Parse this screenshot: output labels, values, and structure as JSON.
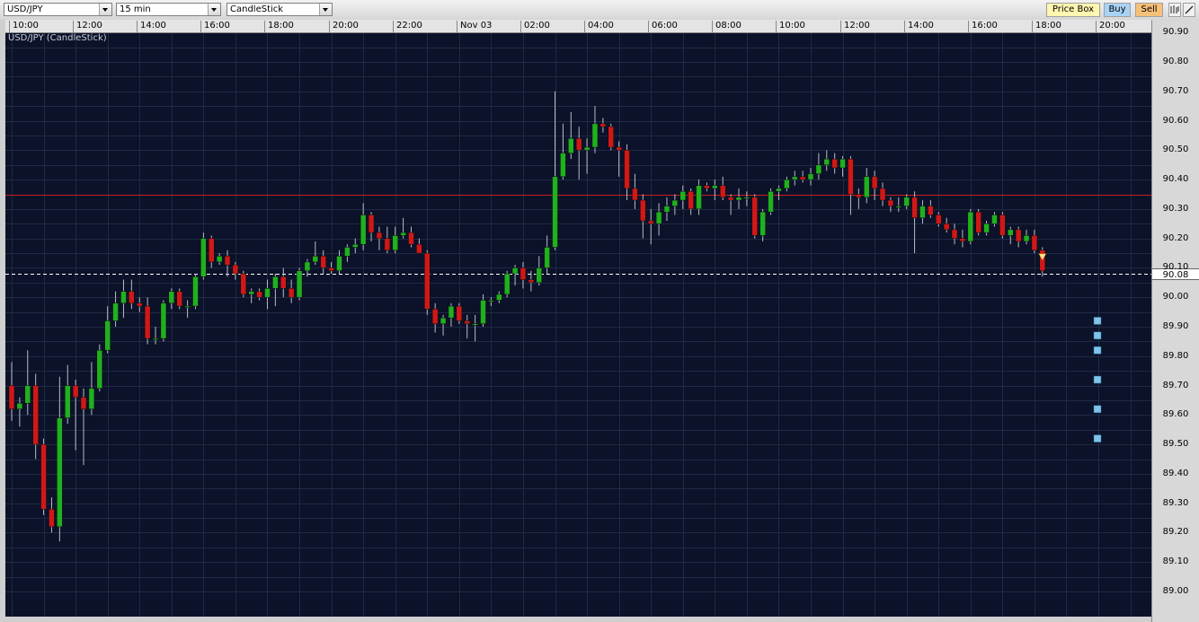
{
  "toolbar": {
    "symbol": "USD/JPY",
    "timeframe": "15 min",
    "chart_style": "CandleStick",
    "price_box_label": "Price Box",
    "buy_label": "Buy",
    "sell_label": "Sell",
    "icons": [
      "bars-icon",
      "draw-line-icon"
    ]
  },
  "chart_label": "USD/JPY (CandleStick)",
  "current_price_label": "90.08",
  "colors": {
    "background": "#0b1229",
    "grid": "#1f2a44",
    "bull": "#20b020",
    "bear": "#d01818",
    "wick": "#b8bcc8",
    "reference_line": "#c82020",
    "current_line": "#ffffff",
    "markers": "#7ec4ec"
  },
  "chart_data": {
    "type": "candlestick",
    "title": "USD/JPY (CandleStick)",
    "timeframe": "15 min",
    "ylim": [
      89.0,
      90.9
    ],
    "y_ticks": [
      "89.00",
      "89.10",
      "89.20",
      "89.30",
      "89.40",
      "89.50",
      "89.60",
      "89.70",
      "89.80",
      "89.90",
      "90.00",
      "90.08",
      "90.10",
      "90.20",
      "90.30",
      "90.40",
      "90.50",
      "90.60",
      "90.70",
      "90.80",
      "90.90"
    ],
    "x_tick_labels": [
      "10:00",
      "12:00",
      "14:00",
      "16:00",
      "18:00",
      "20:00",
      "22:00",
      "Nov 03",
      "02:00",
      "04:00",
      "06:00",
      "08:00",
      "10:00",
      "12:00",
      "14:00",
      "16:00",
      "18:00",
      "20:00"
    ],
    "current_price": 90.08,
    "reference_line": 90.35,
    "marker_levels": [
      89.52,
      89.62,
      89.72,
      89.82,
      89.87,
      89.92
    ],
    "candles": [
      {
        "o": 89.7,
        "h": 89.78,
        "l": 89.58,
        "c": 89.62
      },
      {
        "o": 89.62,
        "h": 89.66,
        "l": 89.56,
        "c": 89.64
      },
      {
        "o": 89.64,
        "h": 89.82,
        "l": 89.6,
        "c": 89.7
      },
      {
        "o": 89.7,
        "h": 89.74,
        "l": 89.45,
        "c": 89.5
      },
      {
        "o": 89.5,
        "h": 89.52,
        "l": 89.26,
        "c": 89.28
      },
      {
        "o": 89.28,
        "h": 89.32,
        "l": 89.2,
        "c": 89.22
      },
      {
        "o": 89.22,
        "h": 89.73,
        "l": 89.17,
        "c": 89.59
      },
      {
        "o": 89.59,
        "h": 89.77,
        "l": 89.57,
        "c": 89.7
      },
      {
        "o": 89.7,
        "h": 89.72,
        "l": 89.48,
        "c": 89.66
      },
      {
        "o": 89.66,
        "h": 89.69,
        "l": 89.43,
        "c": 89.62
      },
      {
        "o": 89.62,
        "h": 89.78,
        "l": 89.6,
        "c": 89.69
      },
      {
        "o": 89.69,
        "h": 89.84,
        "l": 89.68,
        "c": 89.82
      },
      {
        "o": 89.82,
        "h": 89.97,
        "l": 89.81,
        "c": 89.92
      },
      {
        "o": 89.92,
        "h": 90.02,
        "l": 89.9,
        "c": 89.98
      },
      {
        "o": 89.98,
        "h": 90.06,
        "l": 89.93,
        "c": 90.02
      },
      {
        "o": 90.02,
        "h": 90.06,
        "l": 89.96,
        "c": 89.98
      },
      {
        "o": 89.98,
        "h": 90.0,
        "l": 89.95,
        "c": 89.97
      },
      {
        "o": 89.97,
        "h": 90.0,
        "l": 89.84,
        "c": 89.86
      },
      {
        "o": 89.86,
        "h": 89.9,
        "l": 89.84,
        "c": 89.86
      },
      {
        "o": 89.86,
        "h": 89.99,
        "l": 89.85,
        "c": 89.98
      },
      {
        "o": 89.98,
        "h": 90.03,
        "l": 89.96,
        "c": 90.02
      },
      {
        "o": 90.02,
        "h": 90.03,
        "l": 89.96,
        "c": 89.97
      },
      {
        "o": 89.97,
        "h": 89.99,
        "l": 89.93,
        "c": 89.97
      },
      {
        "o": 89.97,
        "h": 90.08,
        "l": 89.96,
        "c": 90.07
      },
      {
        "o": 90.07,
        "h": 90.22,
        "l": 90.06,
        "c": 90.2
      },
      {
        "o": 90.2,
        "h": 90.21,
        "l": 90.1,
        "c": 90.12
      },
      {
        "o": 90.12,
        "h": 90.15,
        "l": 90.11,
        "c": 90.14
      },
      {
        "o": 90.14,
        "h": 90.16,
        "l": 90.07,
        "c": 90.11
      },
      {
        "o": 90.11,
        "h": 90.12,
        "l": 90.06,
        "c": 90.08
      },
      {
        "o": 90.08,
        "h": 90.09,
        "l": 90.0,
        "c": 90.01
      },
      {
        "o": 90.01,
        "h": 90.03,
        "l": 89.98,
        "c": 90.02
      },
      {
        "o": 90.02,
        "h": 90.03,
        "l": 89.99,
        "c": 90.0
      },
      {
        "o": 90.0,
        "h": 90.06,
        "l": 89.96,
        "c": 90.03
      },
      {
        "o": 90.03,
        "h": 90.08,
        "l": 89.97,
        "c": 90.07
      },
      {
        "o": 90.07,
        "h": 90.1,
        "l": 90.0,
        "c": 90.03
      },
      {
        "o": 90.03,
        "h": 90.06,
        "l": 89.98,
        "c": 90.0
      },
      {
        "o": 90.0,
        "h": 90.1,
        "l": 89.99,
        "c": 90.09
      },
      {
        "o": 90.09,
        "h": 90.13,
        "l": 90.07,
        "c": 90.12
      },
      {
        "o": 90.12,
        "h": 90.19,
        "l": 90.11,
        "c": 90.14
      },
      {
        "o": 90.14,
        "h": 90.16,
        "l": 90.08,
        "c": 90.1
      },
      {
        "o": 90.1,
        "h": 90.12,
        "l": 90.08,
        "c": 90.09
      },
      {
        "o": 90.09,
        "h": 90.16,
        "l": 90.08,
        "c": 90.14
      },
      {
        "o": 90.14,
        "h": 90.18,
        "l": 90.12,
        "c": 90.17
      },
      {
        "o": 90.17,
        "h": 90.2,
        "l": 90.15,
        "c": 90.18
      },
      {
        "o": 90.18,
        "h": 90.32,
        "l": 90.16,
        "c": 90.28
      },
      {
        "o": 90.28,
        "h": 90.29,
        "l": 90.19,
        "c": 90.22
      },
      {
        "o": 90.22,
        "h": 90.24,
        "l": 90.16,
        "c": 90.2
      },
      {
        "o": 90.2,
        "h": 90.24,
        "l": 90.15,
        "c": 90.16
      },
      {
        "o": 90.16,
        "h": 90.24,
        "l": 90.15,
        "c": 90.21
      },
      {
        "o": 90.21,
        "h": 90.27,
        "l": 90.2,
        "c": 90.22
      },
      {
        "o": 90.22,
        "h": 90.24,
        "l": 90.17,
        "c": 90.18
      },
      {
        "o": 90.18,
        "h": 90.2,
        "l": 90.15,
        "c": 90.15
      },
      {
        "o": 90.15,
        "h": 90.16,
        "l": 89.94,
        "c": 89.96
      },
      {
        "o": 89.96,
        "h": 89.98,
        "l": 89.88,
        "c": 89.91
      },
      {
        "o": 89.91,
        "h": 89.94,
        "l": 89.87,
        "c": 89.93
      },
      {
        "o": 89.93,
        "h": 89.98,
        "l": 89.9,
        "c": 89.97
      },
      {
        "o": 89.97,
        "h": 89.98,
        "l": 89.91,
        "c": 89.92
      },
      {
        "o": 89.92,
        "h": 89.94,
        "l": 89.86,
        "c": 89.91
      },
      {
        "o": 89.91,
        "h": 89.94,
        "l": 89.85,
        "c": 89.91
      },
      {
        "o": 89.91,
        "h": 90.01,
        "l": 89.9,
        "c": 89.99
      },
      {
        "o": 89.99,
        "h": 90.0,
        "l": 89.97,
        "c": 89.99
      },
      {
        "o": 89.99,
        "h": 90.02,
        "l": 89.98,
        "c": 90.01
      },
      {
        "o": 90.01,
        "h": 90.09,
        "l": 90.0,
        "c": 90.08
      },
      {
        "o": 90.08,
        "h": 90.11,
        "l": 90.04,
        "c": 90.1
      },
      {
        "o": 90.1,
        "h": 90.12,
        "l": 90.03,
        "c": 90.06
      },
      {
        "o": 90.06,
        "h": 90.09,
        "l": 90.02,
        "c": 90.05
      },
      {
        "o": 90.05,
        "h": 90.14,
        "l": 90.04,
        "c": 90.1
      },
      {
        "o": 90.1,
        "h": 90.21,
        "l": 90.08,
        "c": 90.17
      },
      {
        "o": 90.17,
        "h": 90.7,
        "l": 90.16,
        "c": 90.41
      },
      {
        "o": 90.41,
        "h": 90.59,
        "l": 90.4,
        "c": 90.49
      },
      {
        "o": 90.49,
        "h": 90.63,
        "l": 90.47,
        "c": 90.54
      },
      {
        "o": 90.54,
        "h": 90.58,
        "l": 90.4,
        "c": 90.5
      },
      {
        "o": 90.5,
        "h": 90.54,
        "l": 90.42,
        "c": 90.51
      },
      {
        "o": 90.51,
        "h": 90.65,
        "l": 90.49,
        "c": 90.59
      },
      {
        "o": 90.59,
        "h": 90.61,
        "l": 90.56,
        "c": 90.58
      },
      {
        "o": 90.58,
        "h": 90.59,
        "l": 90.5,
        "c": 90.51
      },
      {
        "o": 90.51,
        "h": 90.53,
        "l": 90.41,
        "c": 90.5
      },
      {
        "o": 90.5,
        "h": 90.52,
        "l": 90.33,
        "c": 90.37
      },
      {
        "o": 90.37,
        "h": 90.42,
        "l": 90.3,
        "c": 90.33
      },
      {
        "o": 90.33,
        "h": 90.35,
        "l": 90.2,
        "c": 90.26
      },
      {
        "o": 90.26,
        "h": 90.3,
        "l": 90.18,
        "c": 90.25
      },
      {
        "o": 90.25,
        "h": 90.32,
        "l": 90.21,
        "c": 90.29
      },
      {
        "o": 90.29,
        "h": 90.34,
        "l": 90.26,
        "c": 90.31
      },
      {
        "o": 90.31,
        "h": 90.35,
        "l": 90.28,
        "c": 90.33
      },
      {
        "o": 90.33,
        "h": 90.38,
        "l": 90.3,
        "c": 90.36
      },
      {
        "o": 90.36,
        "h": 90.37,
        "l": 90.28,
        "c": 90.3
      },
      {
        "o": 90.3,
        "h": 90.4,
        "l": 90.28,
        "c": 90.38
      },
      {
        "o": 90.38,
        "h": 90.39,
        "l": 90.36,
        "c": 90.37
      },
      {
        "o": 90.37,
        "h": 90.4,
        "l": 90.33,
        "c": 90.38
      },
      {
        "o": 90.38,
        "h": 90.41,
        "l": 90.33,
        "c": 90.34
      },
      {
        "o": 90.34,
        "h": 90.35,
        "l": 90.28,
        "c": 90.33
      },
      {
        "o": 90.33,
        "h": 90.37,
        "l": 90.3,
        "c": 90.34
      },
      {
        "o": 90.34,
        "h": 90.36,
        "l": 90.31,
        "c": 90.34
      },
      {
        "o": 90.34,
        "h": 90.35,
        "l": 90.2,
        "c": 90.21
      },
      {
        "o": 90.21,
        "h": 90.3,
        "l": 90.19,
        "c": 90.29
      },
      {
        "o": 90.29,
        "h": 90.37,
        "l": 90.28,
        "c": 90.36
      },
      {
        "o": 90.36,
        "h": 90.38,
        "l": 90.33,
        "c": 90.37
      },
      {
        "o": 90.37,
        "h": 90.41,
        "l": 90.36,
        "c": 90.4
      },
      {
        "o": 90.4,
        "h": 90.43,
        "l": 90.38,
        "c": 90.41
      },
      {
        "o": 90.41,
        "h": 90.43,
        "l": 90.39,
        "c": 90.4
      },
      {
        "o": 90.4,
        "h": 90.44,
        "l": 90.38,
        "c": 90.42
      },
      {
        "o": 90.42,
        "h": 90.49,
        "l": 90.4,
        "c": 90.45
      },
      {
        "o": 90.45,
        "h": 90.5,
        "l": 90.43,
        "c": 90.47
      },
      {
        "o": 90.47,
        "h": 90.49,
        "l": 90.42,
        "c": 90.44
      },
      {
        "o": 90.44,
        "h": 90.48,
        "l": 90.41,
        "c": 90.47
      },
      {
        "o": 90.47,
        "h": 90.48,
        "l": 90.28,
        "c": 90.35
      },
      {
        "o": 90.35,
        "h": 90.37,
        "l": 90.3,
        "c": 90.34
      },
      {
        "o": 90.34,
        "h": 90.44,
        "l": 90.32,
        "c": 90.41
      },
      {
        "o": 90.41,
        "h": 90.43,
        "l": 90.33,
        "c": 90.37
      },
      {
        "o": 90.37,
        "h": 90.39,
        "l": 90.31,
        "c": 90.33
      },
      {
        "o": 90.33,
        "h": 90.34,
        "l": 90.29,
        "c": 90.31
      },
      {
        "o": 90.31,
        "h": 90.34,
        "l": 90.29,
        "c": 90.31
      },
      {
        "o": 90.31,
        "h": 90.35,
        "l": 90.3,
        "c": 90.34
      },
      {
        "o": 90.34,
        "h": 90.36,
        "l": 90.15,
        "c": 90.27
      },
      {
        "o": 90.27,
        "h": 90.33,
        "l": 90.25,
        "c": 90.31
      },
      {
        "o": 90.31,
        "h": 90.33,
        "l": 90.27,
        "c": 90.28
      },
      {
        "o": 90.28,
        "h": 90.29,
        "l": 90.24,
        "c": 90.25
      },
      {
        "o": 90.25,
        "h": 90.27,
        "l": 90.22,
        "c": 90.23
      },
      {
        "o": 90.23,
        "h": 90.25,
        "l": 90.18,
        "c": 90.2
      },
      {
        "o": 90.2,
        "h": 90.23,
        "l": 90.17,
        "c": 90.19
      },
      {
        "o": 90.19,
        "h": 90.3,
        "l": 90.18,
        "c": 90.29
      },
      {
        "o": 90.29,
        "h": 90.3,
        "l": 90.21,
        "c": 90.22
      },
      {
        "o": 90.22,
        "h": 90.26,
        "l": 90.21,
        "c": 90.25
      },
      {
        "o": 90.25,
        "h": 90.29,
        "l": 90.24,
        "c": 90.28
      },
      {
        "o": 90.28,
        "h": 90.29,
        "l": 90.2,
        "c": 90.21
      },
      {
        "o": 90.21,
        "h": 90.24,
        "l": 90.18,
        "c": 90.23
      },
      {
        "o": 90.23,
        "h": 90.24,
        "l": 90.17,
        "c": 90.19
      },
      {
        "o": 90.19,
        "h": 90.23,
        "l": 90.18,
        "c": 90.21
      },
      {
        "o": 90.21,
        "h": 90.23,
        "l": 90.15,
        "c": 90.16
      },
      {
        "o": 90.16,
        "h": 90.17,
        "l": 90.07,
        "c": 90.09
      }
    ]
  }
}
